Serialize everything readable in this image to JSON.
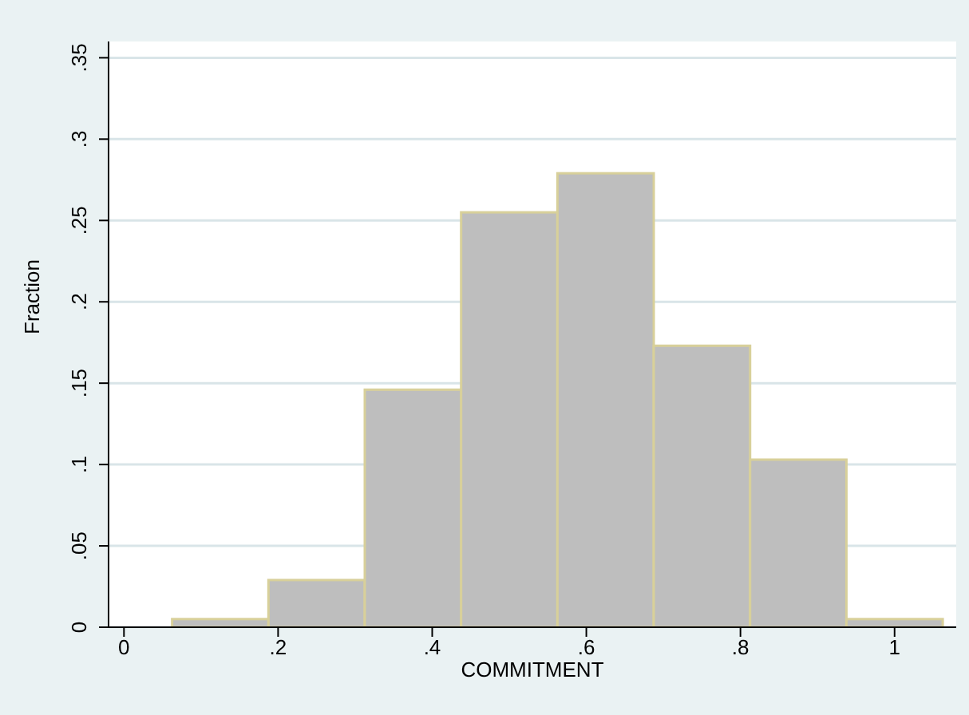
{
  "chart_data": {
    "type": "histogram",
    "xlabel": "COMMITMENT",
    "ylabel": "Fraction",
    "bins": [
      0.0625,
      0.1875,
      0.3125,
      0.4375,
      0.5625,
      0.6875,
      0.8125,
      0.9375,
      1.0625
    ],
    "values": [
      0.005,
      0.029,
      0.146,
      0.255,
      0.279,
      0.173,
      0.103,
      0.005
    ],
    "color": "#bebebe",
    "xlim": [
      -0.02,
      1.08
    ],
    "xticks": [
      0,
      {
        "value": 0.2,
        "label": ".2"
      },
      {
        "value": 0.4,
        "label": ".4"
      },
      {
        "value": 0.6,
        "label": ".6"
      },
      {
        "value": 0.8,
        "label": ".8"
      },
      1
    ],
    "ylim": [
      0,
      0.36
    ],
    "yticks": [
      0,
      {
        "value": 0.05,
        "label": ".05"
      },
      {
        "value": 0.1,
        "label": ".1"
      },
      {
        "value": 0.15,
        "label": ".15"
      },
      {
        "value": 0.2,
        "label": ".2"
      },
      {
        "value": 0.25,
        "label": ".25"
      },
      {
        "value": 0.3,
        "label": ".3"
      },
      {
        "value": 0.35,
        "label": ".35"
      }
    ],
    "grid": "y",
    "legend": false
  }
}
